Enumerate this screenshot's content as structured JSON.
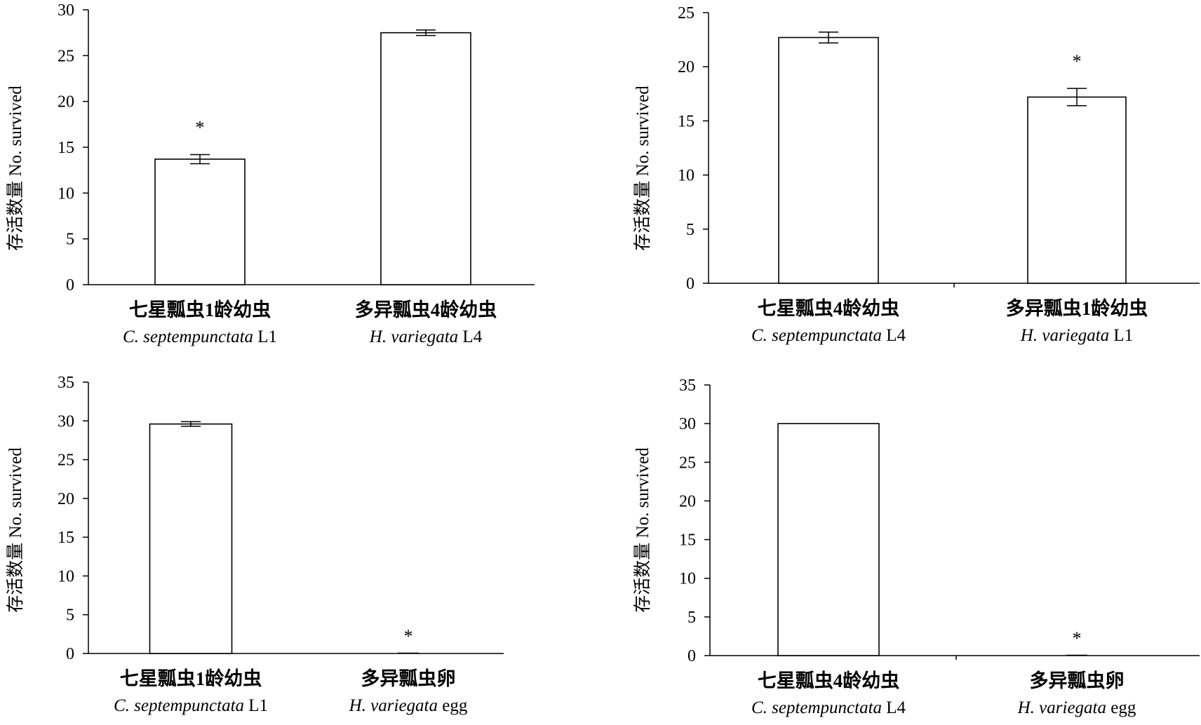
{
  "chart_data": [
    {
      "type": "bar",
      "ylabel": "存活数量 No. survived",
      "ylim": [
        0,
        30
      ],
      "yticks": [
        0,
        5,
        10,
        15,
        20,
        25,
        30
      ],
      "categories": [
        {
          "cn": "七星瓢虫1龄幼虫",
          "en_italic": "C. septempunctata",
          "en_suffix": " L1"
        },
        {
          "cn": "多异瓢虫4龄幼虫",
          "en_italic": "H. variegata",
          "en_suffix": "  L4"
        }
      ],
      "values": [
        13.7,
        27.5
      ],
      "errors": [
        0.5,
        0.3
      ],
      "significance": [
        "*",
        ""
      ]
    },
    {
      "type": "bar",
      "ylabel": "存活数量 No. survived",
      "ylim": [
        0,
        25
      ],
      "yticks": [
        0,
        5,
        10,
        15,
        20,
        25
      ],
      "categories": [
        {
          "cn": "七星瓢虫4龄幼虫",
          "en_italic": "C. septempunctata",
          "en_suffix": " L4"
        },
        {
          "cn": "多异瓢虫1龄幼虫",
          "en_italic": "H. variegata",
          "en_suffix": "  L1"
        }
      ],
      "values": [
        22.7,
        17.2
      ],
      "errors": [
        0.5,
        0.8
      ],
      "significance": [
        "",
        "*"
      ]
    },
    {
      "type": "bar",
      "ylabel": "存活数量 No. survived",
      "ylim": [
        0,
        35
      ],
      "yticks": [
        0,
        5,
        10,
        15,
        20,
        25,
        30,
        35
      ],
      "categories": [
        {
          "cn": "七星瓢虫1龄幼虫",
          "en_italic": "C. septempunctata",
          "en_suffix": " L1"
        },
        {
          "cn": "多异瓢虫卵",
          "en_italic": "H. variegata",
          "en_suffix": "  egg"
        }
      ],
      "values": [
        29.6,
        0
      ],
      "errors": [
        0.3,
        0
      ],
      "significance": [
        "",
        "*"
      ]
    },
    {
      "type": "bar",
      "ylabel": "存活数量 No. survived",
      "ylim": [
        0,
        35
      ],
      "yticks": [
        0,
        5,
        10,
        15,
        20,
        25,
        30,
        35
      ],
      "categories": [
        {
          "cn": "七星瓢虫4龄幼虫",
          "en_italic": "C. septempunctata",
          "en_suffix": " L4"
        },
        {
          "cn": "多异瓢虫卵",
          "en_italic": "H. variegata",
          "en_suffix": "  egg"
        }
      ],
      "values": [
        30,
        0
      ],
      "errors": [
        0,
        0
      ],
      "significance": [
        "",
        "*"
      ]
    }
  ]
}
